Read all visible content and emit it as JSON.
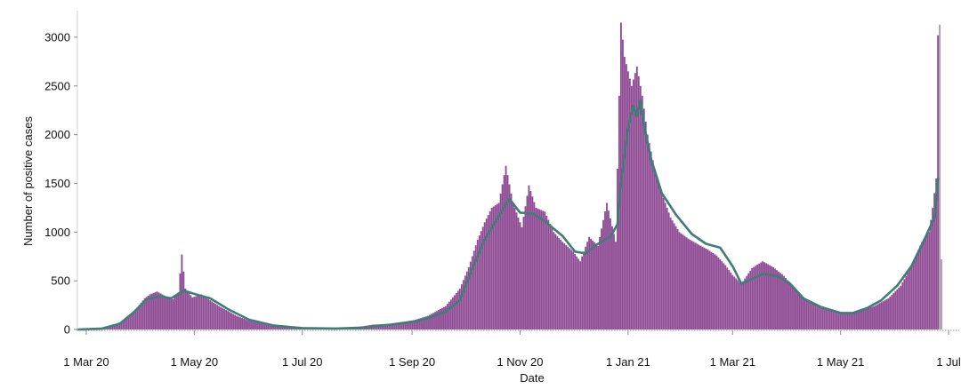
{
  "chart_data": {
    "type": "bar",
    "xlabel": "Date",
    "ylabel": "Number of positive cases",
    "xlim": [
      "2020-02-25",
      "2021-07-07"
    ],
    "ylim": [
      0,
      3200
    ],
    "grid": false,
    "x_ticks": [
      {
        "date": "2020-03-01",
        "label": "1 Mar 20"
      },
      {
        "date": "2020-05-01",
        "label": "1 May 20"
      },
      {
        "date": "2020-07-01",
        "label": "1 Jul 20"
      },
      {
        "date": "2020-09-01",
        "label": "1 Sep 20"
      },
      {
        "date": "2020-11-01",
        "label": "1 Nov 20"
      },
      {
        "date": "2021-01-01",
        "label": "1 Jan 21"
      },
      {
        "date": "2021-03-01",
        "label": "1 Mar 21"
      },
      {
        "date": "2021-05-01",
        "label": "1 May 21"
      },
      {
        "date": "2021-07-01",
        "label": "1 Jul"
      }
    ],
    "y_ticks": [
      0,
      500,
      1000,
      1500,
      2000,
      2500,
      3000
    ],
    "colors": {
      "bars": "#8e4a93",
      "recent_bars": "#a99aad",
      "trend": "#3e7d78",
      "axis": "#8a8a8a"
    },
    "series": [
      {
        "kind": "bar",
        "points": [
          [
            "2020-02-28",
            5
          ],
          [
            "2020-03-05",
            8
          ],
          [
            "2020-03-10",
            20
          ],
          [
            "2020-03-15",
            40
          ],
          [
            "2020-03-20",
            70
          ],
          [
            "2020-03-25",
            130
          ],
          [
            "2020-03-30",
            230
          ],
          [
            "2020-04-03",
            320
          ],
          [
            "2020-04-06",
            360
          ],
          [
            "2020-04-10",
            390
          ],
          [
            "2020-04-15",
            340
          ],
          [
            "2020-04-19",
            310
          ],
          [
            "2020-04-22",
            380
          ],
          [
            "2020-04-24",
            770
          ],
          [
            "2020-04-26",
            420
          ],
          [
            "2020-04-30",
            330
          ],
          [
            "2020-05-05",
            360
          ],
          [
            "2020-05-10",
            300
          ],
          [
            "2020-05-15",
            240
          ],
          [
            "2020-05-20",
            190
          ],
          [
            "2020-05-25",
            140
          ],
          [
            "2020-06-01",
            90
          ],
          [
            "2020-06-10",
            50
          ],
          [
            "2020-06-20",
            30
          ],
          [
            "2020-07-01",
            20
          ],
          [
            "2020-07-15",
            15
          ],
          [
            "2020-08-01",
            25
          ],
          [
            "2020-08-10",
            50
          ],
          [
            "2020-08-20",
            60
          ],
          [
            "2020-09-01",
            90
          ],
          [
            "2020-09-10",
            140
          ],
          [
            "2020-09-20",
            240
          ],
          [
            "2020-09-28",
            420
          ],
          [
            "2020-10-03",
            640
          ],
          [
            "2020-10-08",
            920
          ],
          [
            "2020-10-12",
            1100
          ],
          [
            "2020-10-16",
            1250
          ],
          [
            "2020-10-20",
            1300
          ],
          [
            "2020-10-24",
            1680
          ],
          [
            "2020-10-28",
            1300
          ],
          [
            "2020-11-02",
            1050
          ],
          [
            "2020-11-06",
            1480
          ],
          [
            "2020-11-10",
            1250
          ],
          [
            "2020-11-15",
            1210
          ],
          [
            "2020-11-20",
            1000
          ],
          [
            "2020-11-25",
            900
          ],
          [
            "2020-12-01",
            800
          ],
          [
            "2020-12-05",
            700
          ],
          [
            "2020-12-10",
            950
          ],
          [
            "2020-12-15",
            860
          ],
          [
            "2020-12-20",
            1300
          ],
          [
            "2020-12-25",
            900
          ],
          [
            "2020-12-28",
            3150
          ],
          [
            "2020-12-30",
            2800
          ],
          [
            "2021-01-03",
            2500
          ],
          [
            "2021-01-06",
            2700
          ],
          [
            "2021-01-09",
            2400
          ],
          [
            "2021-01-12",
            2000
          ],
          [
            "2021-01-16",
            1650
          ],
          [
            "2021-01-20",
            1400
          ],
          [
            "2021-01-25",
            1150
          ],
          [
            "2021-01-30",
            1000
          ],
          [
            "2021-02-05",
            920
          ],
          [
            "2021-02-10",
            870
          ],
          [
            "2021-02-15",
            820
          ],
          [
            "2021-02-20",
            760
          ],
          [
            "2021-02-25",
            660
          ],
          [
            "2021-03-01",
            560
          ],
          [
            "2021-03-06",
            470
          ],
          [
            "2021-03-12",
            630
          ],
          [
            "2021-03-18",
            700
          ],
          [
            "2021-03-24",
            640
          ],
          [
            "2021-03-30",
            550
          ],
          [
            "2021-04-05",
            420
          ],
          [
            "2021-04-12",
            300
          ],
          [
            "2021-04-20",
            220
          ],
          [
            "2021-04-28",
            180
          ],
          [
            "2021-05-05",
            160
          ],
          [
            "2021-05-12",
            190
          ],
          [
            "2021-05-20",
            240
          ],
          [
            "2021-05-28",
            320
          ],
          [
            "2021-06-04",
            450
          ],
          [
            "2021-06-10",
            650
          ],
          [
            "2021-06-16",
            900
          ],
          [
            "2021-06-20",
            1000
          ],
          [
            "2021-06-22",
            1250
          ],
          [
            "2021-06-24",
            1550
          ],
          [
            "2021-06-25",
            3020
          ]
        ]
      },
      {
        "kind": "bar-recent",
        "points": [
          [
            "2021-06-26",
            3130
          ],
          [
            "2021-06-27",
            720
          ]
        ]
      },
      {
        "kind": "line",
        "points": [
          [
            "2020-02-25",
            0
          ],
          [
            "2020-03-10",
            10
          ],
          [
            "2020-03-20",
            60
          ],
          [
            "2020-03-28",
            180
          ],
          [
            "2020-04-04",
            310
          ],
          [
            "2020-04-12",
            340
          ],
          [
            "2020-04-18",
            320
          ],
          [
            "2020-04-25",
            400
          ],
          [
            "2020-05-02",
            360
          ],
          [
            "2020-05-10",
            320
          ],
          [
            "2020-05-20",
            210
          ],
          [
            "2020-06-01",
            100
          ],
          [
            "2020-06-15",
            40
          ],
          [
            "2020-07-01",
            15
          ],
          [
            "2020-07-20",
            10
          ],
          [
            "2020-08-05",
            20
          ],
          [
            "2020-08-20",
            50
          ],
          [
            "2020-09-05",
            90
          ],
          [
            "2020-09-20",
            180
          ],
          [
            "2020-09-28",
            300
          ],
          [
            "2020-10-05",
            620
          ],
          [
            "2020-10-12",
            920
          ],
          [
            "2020-10-18",
            1100
          ],
          [
            "2020-10-26",
            1340
          ],
          [
            "2020-11-01",
            1200
          ],
          [
            "2020-11-08",
            1190
          ],
          [
            "2020-11-15",
            1110
          ],
          [
            "2020-11-25",
            960
          ],
          [
            "2020-12-02",
            800
          ],
          [
            "2020-12-08",
            780
          ],
          [
            "2020-12-14",
            870
          ],
          [
            "2020-12-22",
            950
          ],
          [
            "2020-12-26",
            1080
          ],
          [
            "2020-12-28",
            1500
          ],
          [
            "2021-01-01",
            2060
          ],
          [
            "2021-01-04",
            2300
          ],
          [
            "2021-01-06",
            2190
          ],
          [
            "2021-01-08",
            2350
          ],
          [
            "2021-01-10",
            2100
          ],
          [
            "2021-01-14",
            1750
          ],
          [
            "2021-01-20",
            1400
          ],
          [
            "2021-01-28",
            1180
          ],
          [
            "2021-02-06",
            980
          ],
          [
            "2021-02-14",
            880
          ],
          [
            "2021-02-22",
            840
          ],
          [
            "2021-03-01",
            650
          ],
          [
            "2021-03-06",
            470
          ],
          [
            "2021-03-12",
            520
          ],
          [
            "2021-03-18",
            570
          ],
          [
            "2021-03-26",
            550
          ],
          [
            "2021-04-02",
            480
          ],
          [
            "2021-04-10",
            320
          ],
          [
            "2021-04-20",
            230
          ],
          [
            "2021-05-01",
            170
          ],
          [
            "2021-05-08",
            170
          ],
          [
            "2021-05-16",
            220
          ],
          [
            "2021-05-24",
            300
          ],
          [
            "2021-06-02",
            450
          ],
          [
            "2021-06-10",
            650
          ],
          [
            "2021-06-18",
            950
          ],
          [
            "2021-06-23",
            1150
          ],
          [
            "2021-06-25",
            1550
          ]
        ]
      }
    ]
  }
}
